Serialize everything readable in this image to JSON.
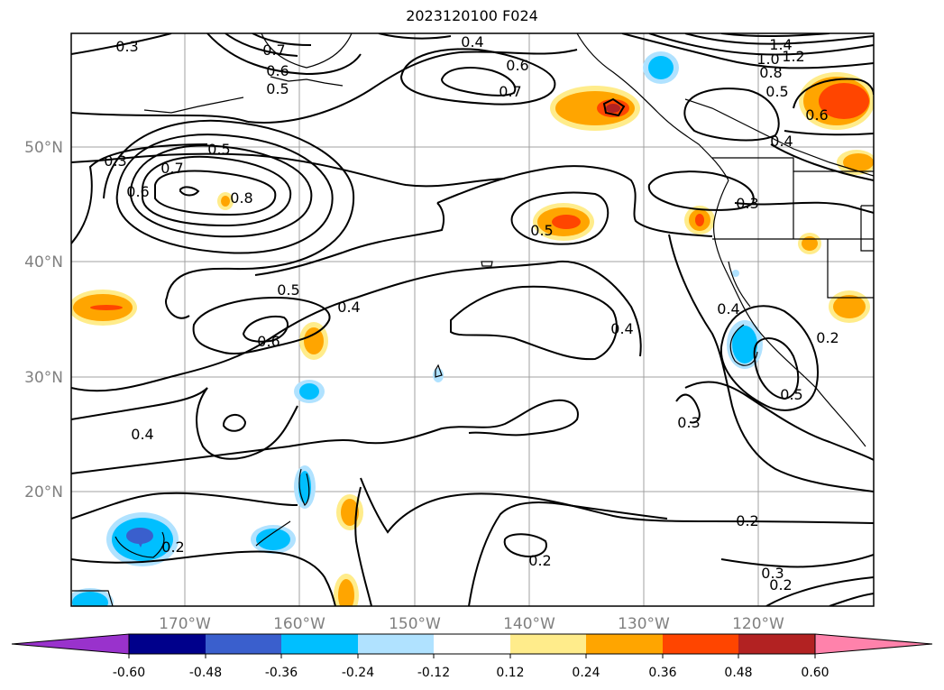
{
  "title": "2023120100 F024",
  "map": {
    "lat_labels": [
      "50°N",
      "40°N",
      "30°N",
      "20°N"
    ],
    "lon_labels": [
      "170°W",
      "160°W",
      "150°W",
      "140°W",
      "130°W",
      "120°W"
    ],
    "contour_labels": [
      "0.3",
      "0.7",
      "0.6",
      "0.5",
      "0.4",
      "0.6",
      "0.7",
      "1.4",
      "1.2",
      "1.0",
      "0.8",
      "0.5",
      "0.6",
      "0.3",
      "0.5",
      "0.7",
      "0.6",
      "0.8",
      "0.4",
      "0.3",
      "0.5",
      "0.5",
      "0.4",
      "0.6",
      "0.4",
      "0.4",
      "0.2",
      "0.5",
      "0.3",
      "0.4",
      "0.2",
      "0.2",
      "0.2",
      "0.3",
      "0.2"
    ]
  },
  "colorbar": {
    "ticks": [
      "-0.60",
      "-0.48",
      "-0.36",
      "-0.24",
      "-0.12",
      "0.12",
      "0.24",
      "0.36",
      "0.48",
      "0.60"
    ],
    "colors": [
      "#9932cc",
      "#00008b",
      "#3a5fcd",
      "#00bfff",
      "#b0e2ff",
      "#ffffff",
      "#ffec8b",
      "#ffa500",
      "#ff4500",
      "#b22222",
      "#ff82ab"
    ]
  }
}
